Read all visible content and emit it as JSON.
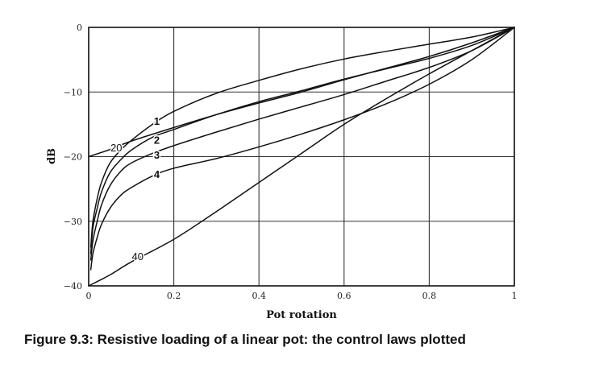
{
  "caption": "Figure 9.3: Resistive loading of a linear pot: the control laws plotted",
  "chart_data": {
    "type": "line",
    "xlabel": "Pot rotation",
    "ylabel": "dB",
    "xlim": [
      0,
      1
    ],
    "ylim": [
      -40,
      0
    ],
    "x_ticks": [
      0,
      0.2,
      0.4,
      0.6,
      0.8,
      1
    ],
    "x_tick_labels": [
      "0",
      "0.2",
      "0.4",
      "0.6",
      "0.8",
      "1"
    ],
    "y_ticks": [
      0,
      -10,
      -20,
      -30,
      -40
    ],
    "y_tick_labels": [
      "0",
      "−10",
      "−20",
      "−30",
      "−40"
    ],
    "grid": true,
    "series": [
      {
        "name": "1",
        "x": [
          0.005,
          0.01,
          0.02,
          0.03,
          0.05,
          0.075,
          0.1,
          0.15,
          0.2,
          0.3,
          0.4,
          0.5,
          0.6,
          0.7,
          0.8,
          0.9,
          1.0
        ],
        "y": [
          -34,
          -30,
          -26.5,
          -24,
          -21,
          -19,
          -17.5,
          -15,
          -13,
          -10.2,
          -8.2,
          -6.4,
          -4.9,
          -3.7,
          -2.6,
          -1.5,
          0
        ]
      },
      {
        "name": "2",
        "x": [
          0.005,
          0.01,
          0.02,
          0.03,
          0.05,
          0.075,
          0.1,
          0.15,
          0.2,
          0.3,
          0.4,
          0.5,
          0.6,
          0.7,
          0.8,
          0.9,
          1.0
        ],
        "y": [
          -35,
          -31,
          -28,
          -25.5,
          -22.5,
          -20.5,
          -19,
          -17,
          -15.8,
          -13.5,
          -11.5,
          -9.8,
          -8,
          -6.4,
          -4.8,
          -2.8,
          0
        ]
      },
      {
        "name": "3",
        "x": [
          0.005,
          0.01,
          0.02,
          0.03,
          0.05,
          0.075,
          0.1,
          0.15,
          0.2,
          0.3,
          0.4,
          0.5,
          0.6,
          0.7,
          0.8,
          0.9,
          1.0
        ],
        "y": [
          -36,
          -33,
          -30,
          -27.5,
          -24.5,
          -22.3,
          -21,
          -19.5,
          -18.3,
          -16.2,
          -14.2,
          -12.3,
          -10.4,
          -8.3,
          -6.2,
          -3.6,
          0
        ]
      },
      {
        "name": "4",
        "x": [
          0.005,
          0.01,
          0.02,
          0.03,
          0.05,
          0.075,
          0.1,
          0.15,
          0.2,
          0.3,
          0.4,
          0.5,
          0.6,
          0.7,
          0.8,
          0.9,
          1.0
        ],
        "y": [
          -37.5,
          -35,
          -32.5,
          -30.5,
          -28,
          -26,
          -24.8,
          -23,
          -21.8,
          -20.3,
          -18.5,
          -16.5,
          -14.3,
          -11.8,
          -8.8,
          -5,
          0
        ]
      },
      {
        "name": "20",
        "x": [
          0,
          0.05,
          0.1,
          0.2,
          0.3,
          0.4,
          0.5,
          0.6,
          0.7,
          0.8,
          0.9,
          1.0
        ],
        "y": [
          -20,
          -18.9,
          -17.6,
          -15.5,
          -13.5,
          -11.7,
          -10,
          -8.1,
          -6.3,
          -4.5,
          -2.4,
          0
        ]
      },
      {
        "name": "40",
        "x": [
          0,
          0.05,
          0.1,
          0.2,
          0.3,
          0.4,
          0.5,
          0.6,
          0.7,
          0.8,
          0.9,
          1.0
        ],
        "y": [
          -40,
          -38.3,
          -36.3,
          -32.8,
          -28.5,
          -24,
          -19.5,
          -15,
          -11,
          -7.2,
          -3.6,
          0
        ]
      }
    ],
    "curve_labels": [
      {
        "text": "1",
        "x": 0.16,
        "y": -14.6
      },
      {
        "text": "2",
        "x": 0.16,
        "y": -17.5
      },
      {
        "text": "3",
        "x": 0.16,
        "y": -19.8
      },
      {
        "text": "4",
        "x": 0.16,
        "y": -22.8
      },
      {
        "text": "20",
        "x": 0.065,
        "y": -18.7
      },
      {
        "text": "40",
        "x": 0.115,
        "y": -35.5
      }
    ]
  }
}
